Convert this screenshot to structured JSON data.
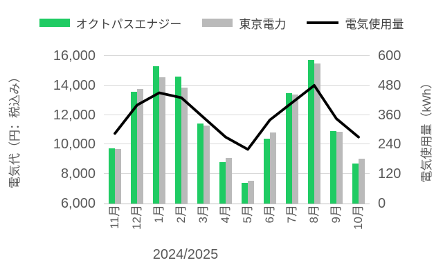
{
  "chart_data": {
    "type": "combo-bar-line",
    "title": "",
    "categories": [
      "11月",
      "12月",
      "1月",
      "2月",
      "3月",
      "4月",
      "5月",
      "6月",
      "7月",
      "8月",
      "9月",
      "10月"
    ],
    "x_axis_group_label": "2024/2025",
    "left_axis": {
      "title": "電気代（円：税込み）",
      "min": 6000,
      "max": 16000,
      "step": 2000,
      "ticks": [
        "6,000",
        "8,000",
        "10,000",
        "12,000",
        "14,000",
        "16,000"
      ]
    },
    "right_axis": {
      "title": "電気使用量（kWh）",
      "min": 0,
      "max": 600,
      "step": 120,
      "ticks": [
        "0",
        "120",
        "240",
        "360",
        "480",
        "600"
      ]
    },
    "grid": true,
    "legend_position": "top",
    "series": [
      {
        "name": "オクトパスエナジー",
        "type": "bar",
        "axis": "left",
        "color": "#1fcb63",
        "values": [
          9750,
          13550,
          15300,
          14600,
          11400,
          8800,
          7400,
          10400,
          13500,
          15700,
          10900,
          8700
        ]
      },
      {
        "name": "東京電力",
        "type": "bar",
        "axis": "left",
        "color": "#bababa",
        "values": [
          9700,
          13750,
          14550,
          13850,
          11300,
          9100,
          7550,
          10800,
          13400,
          15500,
          10850,
          9050
        ]
      },
      {
        "name": "電気使用量",
        "type": "line",
        "axis": "right",
        "color": "#000000",
        "values": [
          285,
          400,
          450,
          430,
          350,
          270,
          220,
          340,
          410,
          480,
          345,
          270
        ]
      }
    ]
  },
  "colors": {
    "gridline": "#d9d9d9",
    "axis_line": "#bfbfbf",
    "tick_text": "#595959",
    "legend_text": "#404040",
    "background": "#ffffff"
  }
}
